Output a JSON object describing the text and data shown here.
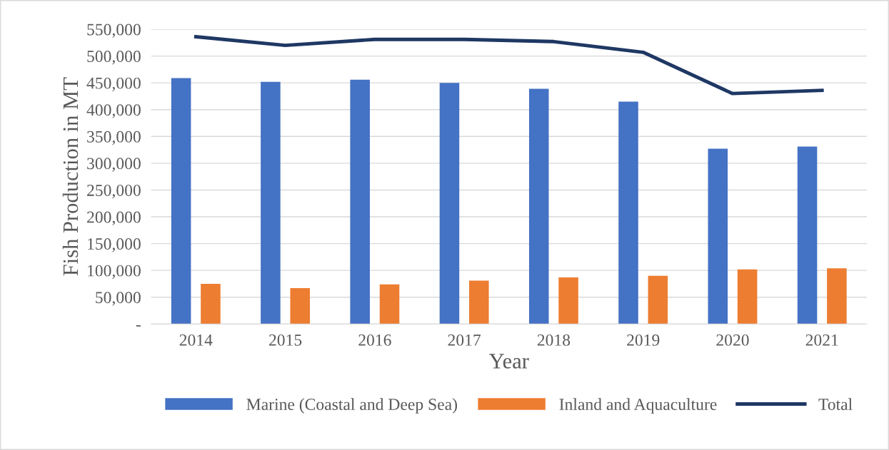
{
  "chart_data": {
    "type": "bar",
    "xlabel": "Year",
    "ylabel": "Fish Production in MT",
    "categories": [
      "2014",
      "2015",
      "2016",
      "2017",
      "2018",
      "2019",
      "2020",
      "2021"
    ],
    "series": [
      {
        "name": "Marine (Coastal and Deep Sea)",
        "color": "#4472c4",
        "values": [
          459000,
          452000,
          456000,
          450000,
          439000,
          415000,
          327000,
          331000
        ]
      },
      {
        "name": "Inland and Aquaculture",
        "color": "#ed7d31",
        "values": [
          75000,
          67000,
          74000,
          81000,
          87000,
          90000,
          102000,
          104000
        ]
      },
      {
        "name": "Total",
        "type": "line",
        "color": "#1f3864",
        "values": [
          536000,
          520000,
          531000,
          531000,
          527000,
          507000,
          430000,
          436000
        ]
      }
    ],
    "ylim": [
      0,
      550000
    ],
    "yticks": [
      {
        "value": 0,
        "label": "-"
      },
      {
        "value": 50000,
        "label": "50,000"
      },
      {
        "value": 100000,
        "label": "100,000"
      },
      {
        "value": 150000,
        "label": "150,000"
      },
      {
        "value": 200000,
        "label": "200,000"
      },
      {
        "value": 250000,
        "label": "250,000"
      },
      {
        "value": 300000,
        "label": "300,000"
      },
      {
        "value": 350000,
        "label": "350,000"
      },
      {
        "value": 400000,
        "label": "400,000"
      },
      {
        "value": 450000,
        "label": "450,000"
      },
      {
        "value": 500000,
        "label": "500,000"
      },
      {
        "value": 550000,
        "label": "550,000"
      }
    ],
    "grid": "y",
    "legend": "bottom",
    "marker": "none",
    "line_style": "solid"
  }
}
